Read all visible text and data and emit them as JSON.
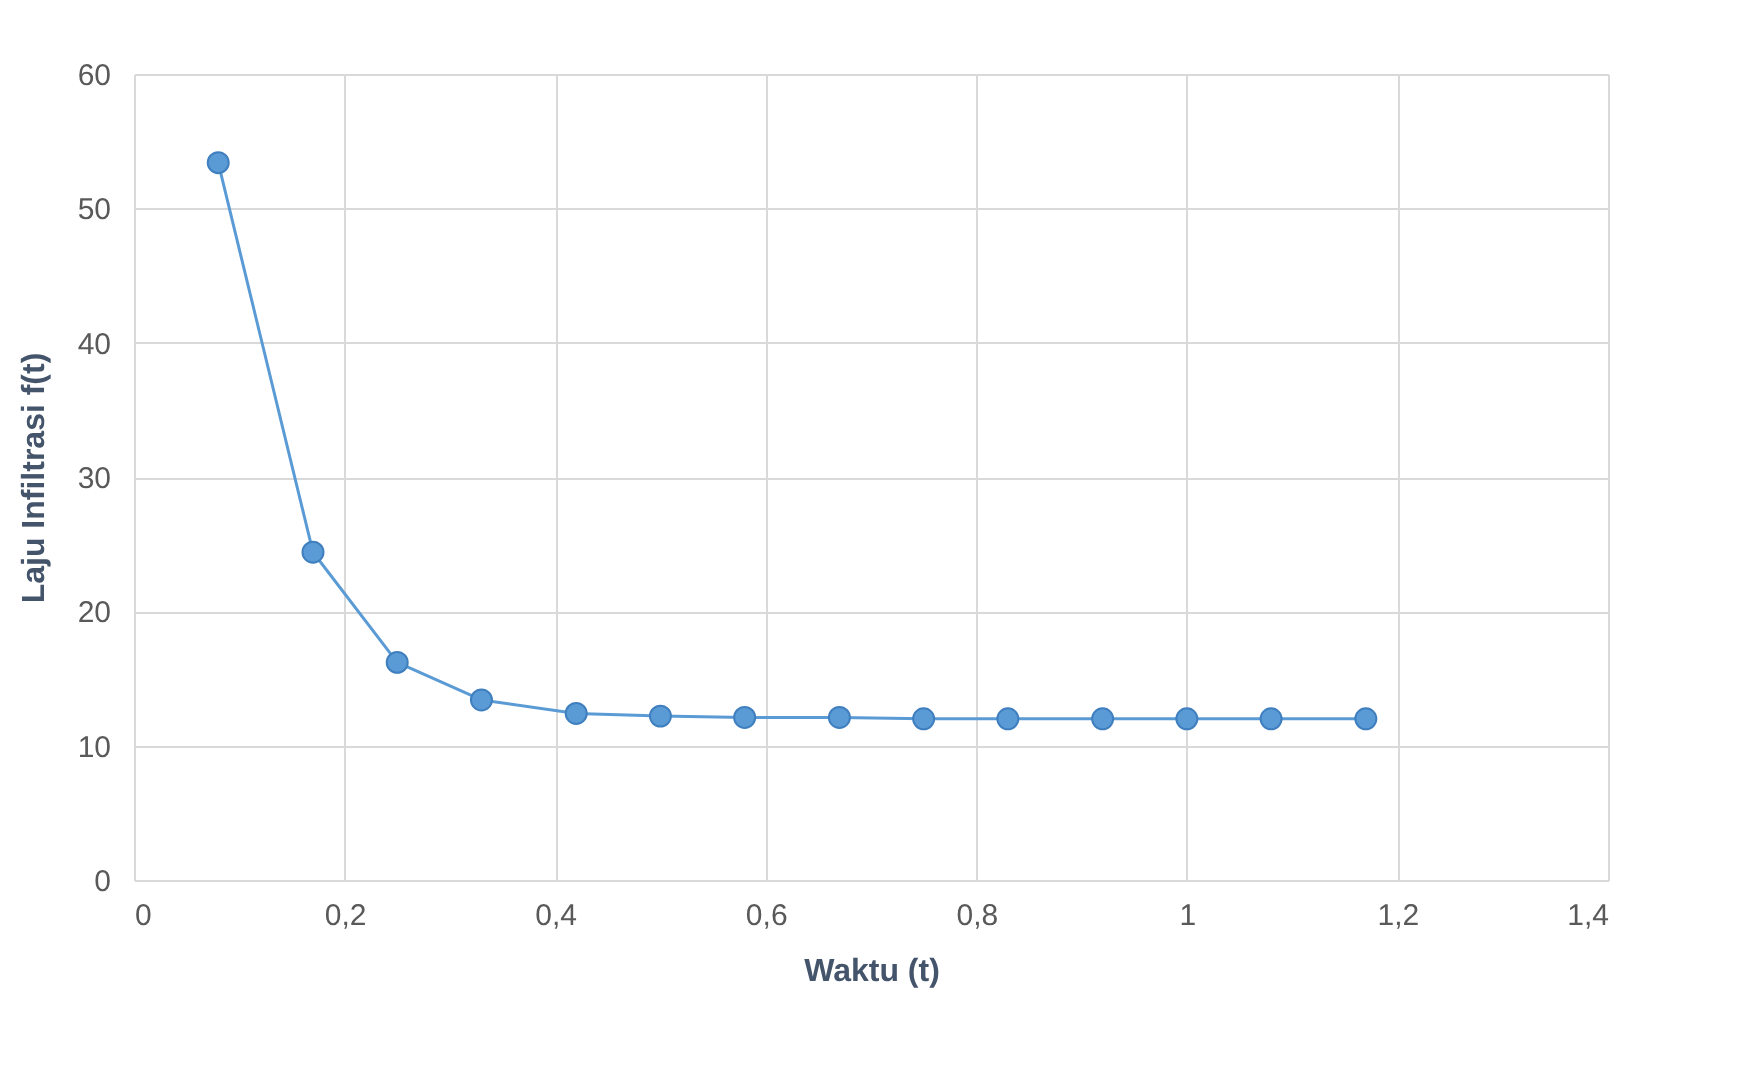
{
  "chart_data": {
    "type": "line",
    "xlabel": "Waktu (t)",
    "ylabel": "Laju Infiltrasi f(t)",
    "x": [
      0.08,
      0.17,
      0.25,
      0.33,
      0.42,
      0.5,
      0.58,
      0.67,
      0.75,
      0.83,
      0.92,
      1.0,
      1.08,
      1.17
    ],
    "series": [
      {
        "color": "#5b9bd5",
        "values": [
          53.4,
          24.4,
          16.2,
          13.4,
          12.4,
          12.2,
          12.1,
          12.1,
          12.0,
          12.0,
          12.0,
          12.0,
          12.0,
          12.0
        ]
      }
    ],
    "xlim": [
      0,
      1.4
    ],
    "xticks": [
      0,
      {
        "value": 0.2,
        "label": "0,2"
      },
      {
        "value": 0.4,
        "label": "0,4"
      },
      {
        "value": 0.6,
        "label": "0,6"
      },
      {
        "value": 0.8,
        "label": "0,8"
      },
      1,
      {
        "value": 1.2,
        "label": "1,2"
      },
      {
        "value": 1.4,
        "label": "1,4"
      }
    ],
    "ylim": [
      0,
      60
    ],
    "yticks": [
      0,
      10,
      20,
      30,
      40,
      50,
      60
    ],
    "grid": true,
    "marker": "circle"
  }
}
